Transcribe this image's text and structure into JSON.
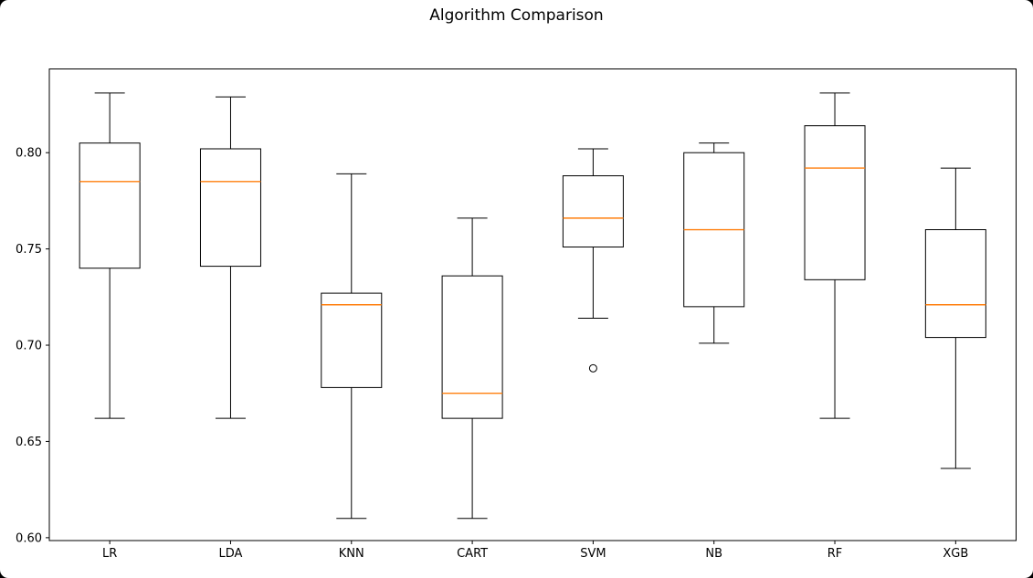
{
  "figure": {
    "title": "Algorithm Comparison",
    "background_color": "#ffffff",
    "outer_background_color": "#000000"
  },
  "chart_data": {
    "type": "boxplot",
    "title": "Algorithm Comparison",
    "categories": [
      "LR",
      "LDA",
      "KNN",
      "CART",
      "SVM",
      "NB",
      "RF",
      "XGB"
    ],
    "series": [
      {
        "label": "LR",
        "whislo": 0.662,
        "q1": 0.74,
        "med": 0.785,
        "q3": 0.805,
        "whishi": 0.831,
        "fliers": []
      },
      {
        "label": "LDA",
        "whislo": 0.662,
        "q1": 0.741,
        "med": 0.785,
        "q3": 0.802,
        "whishi": 0.829,
        "fliers": []
      },
      {
        "label": "KNN",
        "whislo": 0.61,
        "q1": 0.678,
        "med": 0.721,
        "q3": 0.727,
        "whishi": 0.789,
        "fliers": []
      },
      {
        "label": "CART",
        "whislo": 0.61,
        "q1": 0.662,
        "med": 0.675,
        "q3": 0.736,
        "whishi": 0.766,
        "fliers": []
      },
      {
        "label": "SVM",
        "whislo": 0.714,
        "q1": 0.751,
        "med": 0.766,
        "q3": 0.788,
        "whishi": 0.802,
        "fliers": [
          0.688
        ]
      },
      {
        "label": "NB",
        "whislo": 0.701,
        "q1": 0.72,
        "med": 0.76,
        "q3": 0.8,
        "whishi": 0.805,
        "fliers": []
      },
      {
        "label": "RF",
        "whislo": 0.662,
        "q1": 0.734,
        "med": 0.792,
        "q3": 0.814,
        "whishi": 0.831,
        "fliers": []
      },
      {
        "label": "XGB",
        "whislo": 0.636,
        "q1": 0.704,
        "med": 0.721,
        "q3": 0.76,
        "whishi": 0.792,
        "fliers": []
      }
    ],
    "yticks": [
      0.6,
      0.65,
      0.7,
      0.75,
      0.8
    ],
    "ytick_labels": [
      "0.60",
      "0.65",
      "0.70",
      "0.75",
      "0.80"
    ],
    "ylim": [
      0.5985,
      0.8435
    ],
    "xlabel": "",
    "ylabel": "",
    "grid": false,
    "legend": null,
    "colors": {
      "box_line": "#000000",
      "median_line": "#ff7f0e",
      "axis_line": "#000000",
      "tick_text": "#000000",
      "flier_line": "#000000"
    }
  }
}
